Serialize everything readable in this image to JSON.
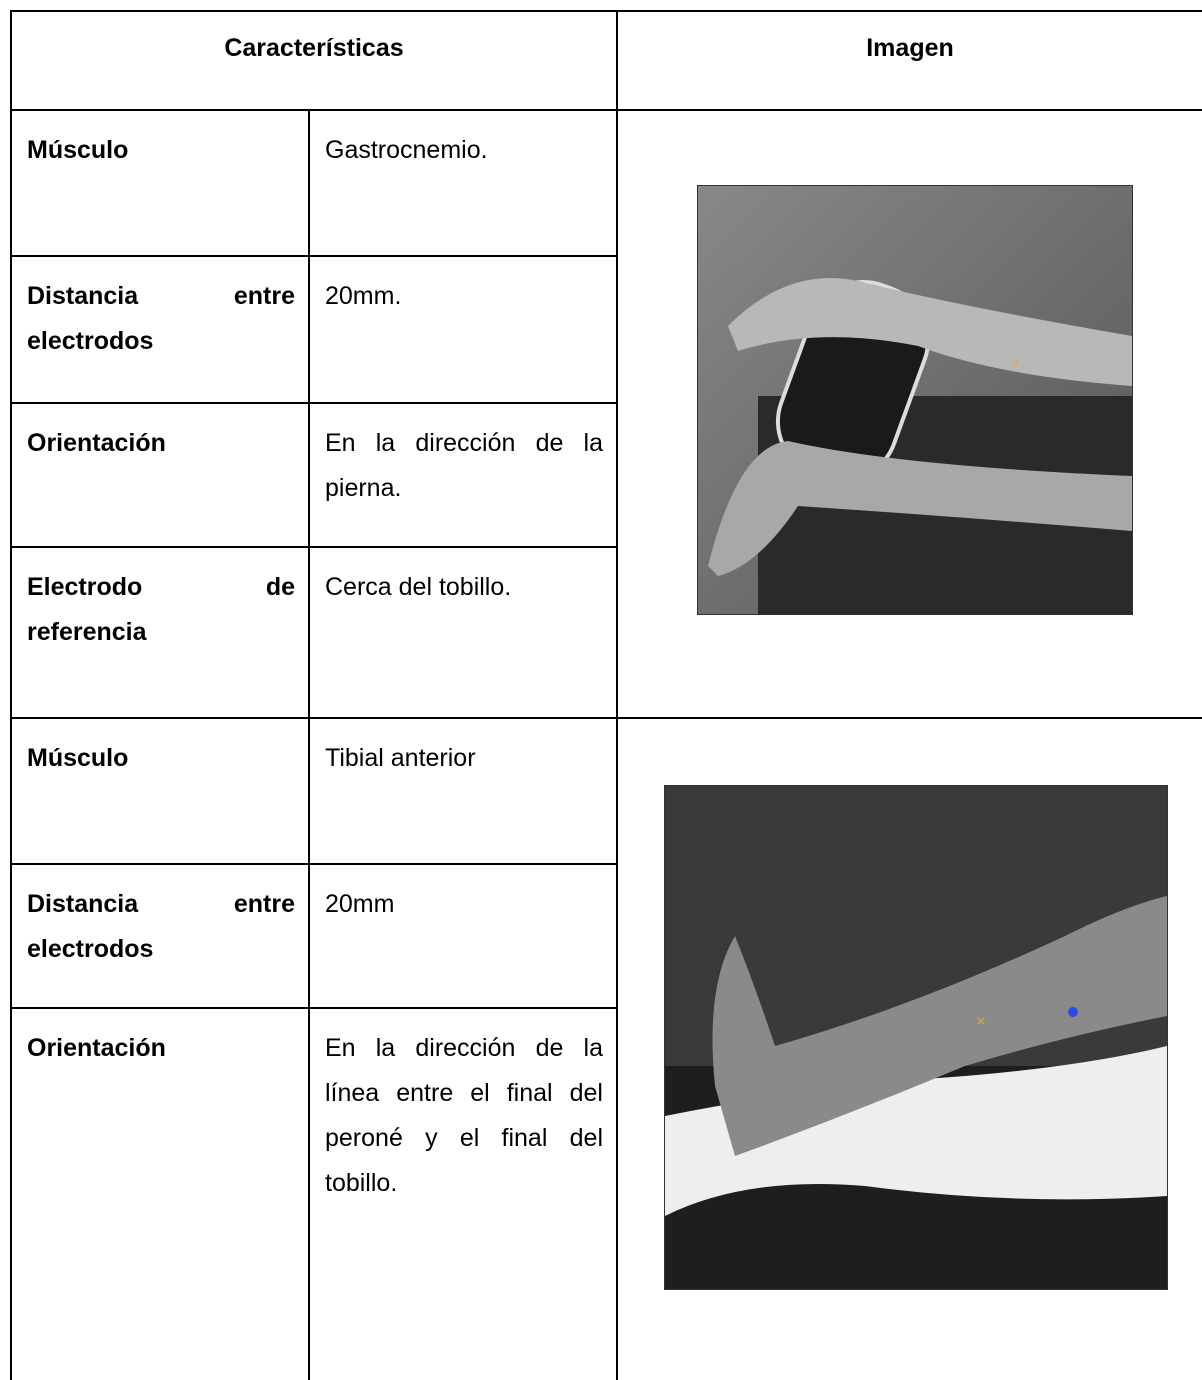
{
  "header": {
    "characteristics": "Características",
    "image": "Imagen"
  },
  "sections": [
    {
      "rows": [
        {
          "label": "Músculo",
          "value": "Gastrocnemio."
        },
        {
          "label": "Distancia entre electrodos",
          "value": "20mm."
        },
        {
          "label": "Orientación",
          "value": "En la dirección de la pierna."
        },
        {
          "label": "Electrodo de referencia",
          "value": "Cerca del tobillo."
        }
      ]
    },
    {
      "rows": [
        {
          "label": "Músculo",
          "value": "Tibial anterior"
        },
        {
          "label": "Distancia entre electrodos",
          "value": "20mm"
        },
        {
          "label": "Orientación",
          "value": "En la dirección de la línea entre el final del peroné y el final del tobillo."
        }
      ]
    }
  ]
}
